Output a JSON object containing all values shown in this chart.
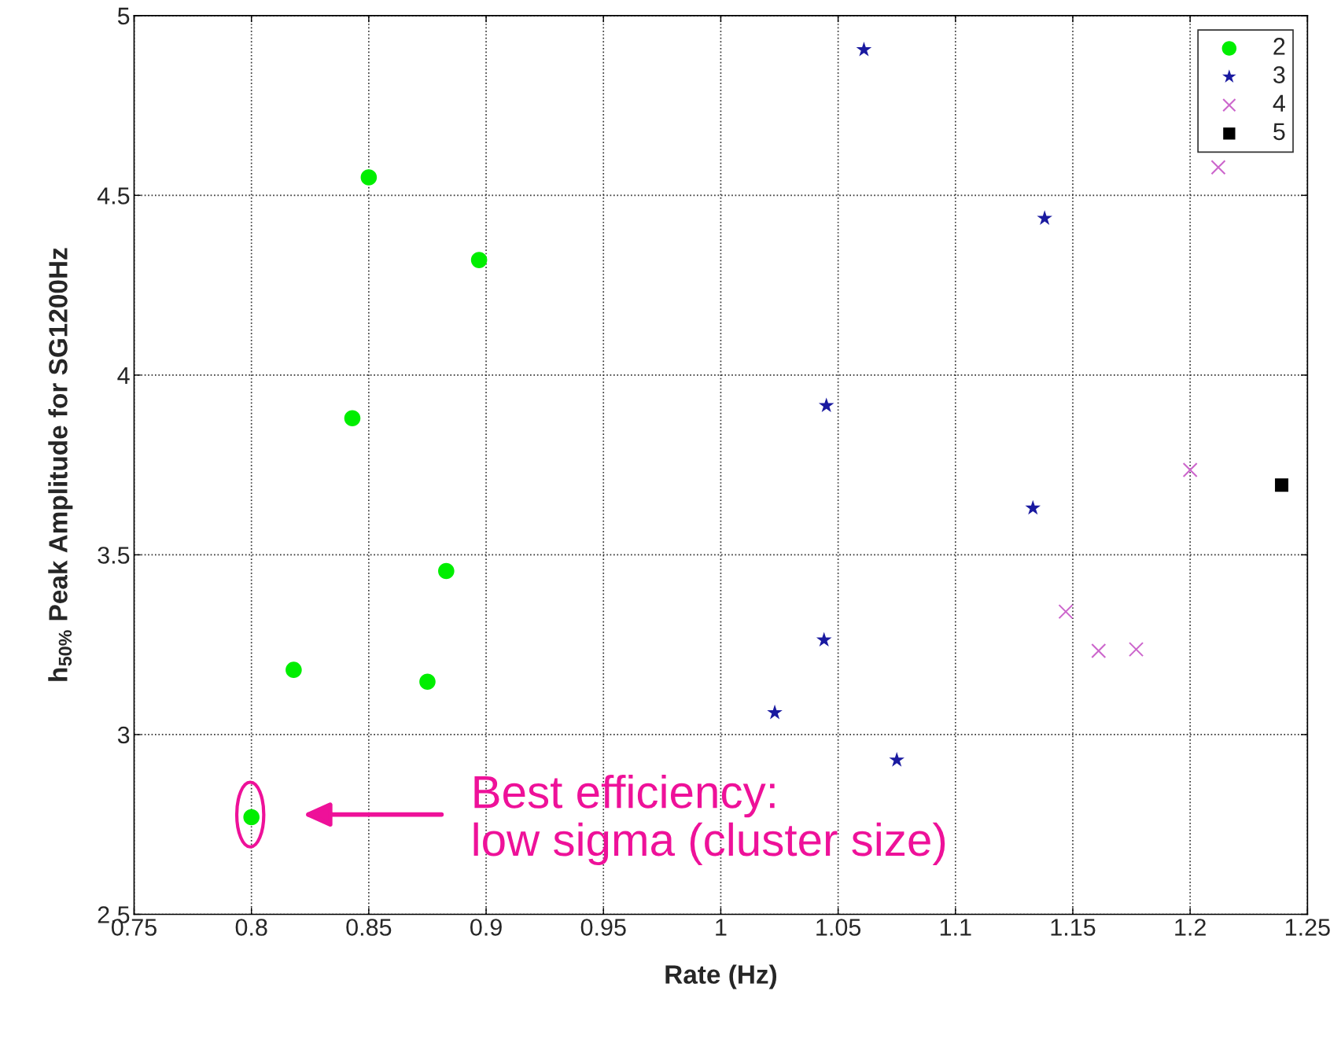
{
  "chart_data": {
    "type": "scatter",
    "xlabel": "Rate (Hz)",
    "ylabel": "h$_{50%}$ Peak Amplitude for SG1200Hz",
    "xlim": [
      0.75,
      1.25
    ],
    "xticks": [
      0.75,
      0.8,
      0.85,
      0.9,
      0.95,
      1,
      1.05,
      1.1,
      1.15,
      1.2,
      1.25
    ],
    "ylim": [
      2.5,
      5
    ],
    "yticks": [
      2.5,
      3,
      3.5,
      4,
      4.5,
      5
    ],
    "grid": true,
    "legend": "top right",
    "series": [
      {
        "name": "2",
        "color": "#00ee00",
        "marker": "circle",
        "x": [
          0.85,
          0.897,
          0.843,
          0.883,
          0.818,
          0.875,
          0.8
        ],
        "values": [
          4.55,
          4.32,
          3.88,
          3.455,
          3.18,
          3.147,
          2.77
        ]
      },
      {
        "name": "3",
        "color": "#1a1aa0",
        "marker": "star",
        "x": [
          1.061,
          1.138,
          1.045,
          1.133,
          1.044,
          1.023,
          1.075
        ],
        "values": [
          4.905,
          4.436,
          3.915,
          3.63,
          3.263,
          3.061,
          2.929
        ]
      },
      {
        "name": "4",
        "color": "#cc66cc",
        "marker": "cross",
        "x": [
          1.212,
          1.2,
          1.147,
          1.161,
          1.177
        ],
        "values": [
          4.578,
          3.736,
          3.342,
          3.233,
          3.237
        ]
      },
      {
        "name": "5",
        "color": "#000000",
        "marker": "square",
        "x": [
          1.239
        ],
        "values": [
          3.694
        ]
      }
    ],
    "annotations": [
      "Best efficiency:\nlow sigma (cluster size)"
    ]
  }
}
